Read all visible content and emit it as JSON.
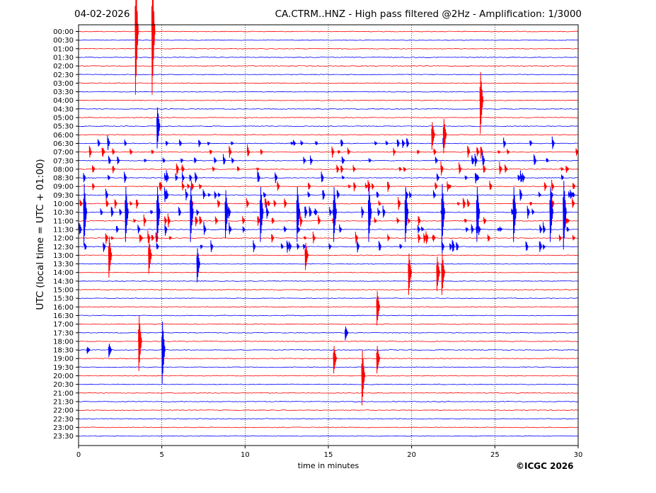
{
  "header": {
    "date": "04-02-2026",
    "title": "CA.CTRM..HNZ - High pass filtered @2Hz - Amplification: 1/3000"
  },
  "footer": {
    "copyright": "©ICGC 2026"
  },
  "colors": {
    "red": "#ff0000",
    "blue": "#0000ff",
    "grid": "#000000"
  },
  "chart_data": {
    "type": "line",
    "xlabel": "time in minutes",
    "ylabel": "UTC (local time = UTC + 01:00)",
    "xlim": [
      0,
      30
    ],
    "xticks": [
      0,
      5,
      10,
      15,
      20,
      25,
      30
    ],
    "grid": "vertical dotted at x ticks",
    "rows": [
      "00:00",
      "00:30",
      "01:00",
      "01:30",
      "02:00",
      "02:30",
      "03:00",
      "03:30",
      "04:00",
      "04:30",
      "05:00",
      "05:30",
      "06:00",
      "06:30",
      "07:00",
      "07:30",
      "08:00",
      "08:30",
      "09:00",
      "09:30",
      "10:00",
      "10:30",
      "11:00",
      "11:30",
      "12:00",
      "12:30",
      "13:00",
      "13:30",
      "14:00",
      "14:30",
      "15:00",
      "15:30",
      "16:00",
      "16:30",
      "17:00",
      "17:30",
      "18:00",
      "18:30",
      "19:00",
      "19:30",
      "20:00",
      "20:30",
      "21:00",
      "21:30",
      "22:00",
      "22:30",
      "23:00",
      "23:30"
    ],
    "row_colors": "alternating red (even rows) / blue (odd rows)",
    "events": [
      {
        "row": "00:00",
        "minute": 3.4,
        "amplitude": 8.5
      },
      {
        "row": "00:00",
        "minute": 4.4,
        "amplitude": 8.5
      },
      {
        "row": "05:30",
        "minute": 4.7,
        "amplitude": 3
      },
      {
        "row": "04:00",
        "minute": 24.1,
        "amplitude": 4.5
      },
      {
        "row": "06:00",
        "minute": 21.2,
        "amplitude": 2
      },
      {
        "row": "06:00",
        "minute": 21.9,
        "amplitude": 2.5
      },
      {
        "row": "10:30",
        "minute": 0.3,
        "amplitude": 4.5
      },
      {
        "row": "10:30",
        "minute": 2.8,
        "amplitude": 4
      },
      {
        "row": "10:30",
        "minute": 4.7,
        "amplitude": 4
      },
      {
        "row": "10:30",
        "minute": 6.7,
        "amplitude": 4
      },
      {
        "row": "10:30",
        "minute": 8.8,
        "amplitude": 3.5
      },
      {
        "row": "10:30",
        "minute": 10.9,
        "amplitude": 4
      },
      {
        "row": "10:30",
        "minute": 13.1,
        "amplitude": 4
      },
      {
        "row": "10:30",
        "minute": 15.3,
        "amplitude": 4
      },
      {
        "row": "10:30",
        "minute": 17.4,
        "amplitude": 4
      },
      {
        "row": "10:30",
        "minute": 19.6,
        "amplitude": 4
      },
      {
        "row": "10:30",
        "minute": 21.8,
        "amplitude": 4.5
      },
      {
        "row": "10:30",
        "minute": 23.9,
        "amplitude": 4
      },
      {
        "row": "10:30",
        "minute": 26.1,
        "amplitude": 4
      },
      {
        "row": "10:30",
        "minute": 28.3,
        "amplitude": 4
      },
      {
        "row": "10:30",
        "minute": 29.1,
        "amplitude": 5
      },
      {
        "row": "13:00",
        "minute": 1.8,
        "amplitude": 3
      },
      {
        "row": "13:00",
        "minute": 4.2,
        "amplitude": 2.5
      },
      {
        "row": "13:30",
        "minute": 7.1,
        "amplitude": 2.5
      },
      {
        "row": "13:00",
        "minute": 13.6,
        "amplitude": 2
      },
      {
        "row": "14:00",
        "minute": 19.8,
        "amplitude": 3
      },
      {
        "row": "14:00",
        "minute": 21.5,
        "amplitude": 2.5
      },
      {
        "row": "14:00",
        "minute": 21.8,
        "amplitude": 3
      },
      {
        "row": "16:00",
        "minute": 17.9,
        "amplitude": 2.5
      },
      {
        "row": "18:00",
        "minute": 3.6,
        "amplitude": 4
      },
      {
        "row": "18:30",
        "minute": 5.0,
        "amplitude": 4.5
      },
      {
        "row": "19:00",
        "minute": 15.3,
        "amplitude": 2
      },
      {
        "row": "20:00",
        "minute": 17.0,
        "amplitude": 4
      },
      {
        "row": "19:00",
        "minute": 17.9,
        "amplitude": 2
      },
      {
        "row": "18:30",
        "minute": 1.8,
        "amplitude": 1
      },
      {
        "row": "18:30",
        "minute": 0.5,
        "amplitude": 0.5
      },
      {
        "row": "17:30",
        "minute": 16.0,
        "amplitude": 1
      }
    ]
  }
}
